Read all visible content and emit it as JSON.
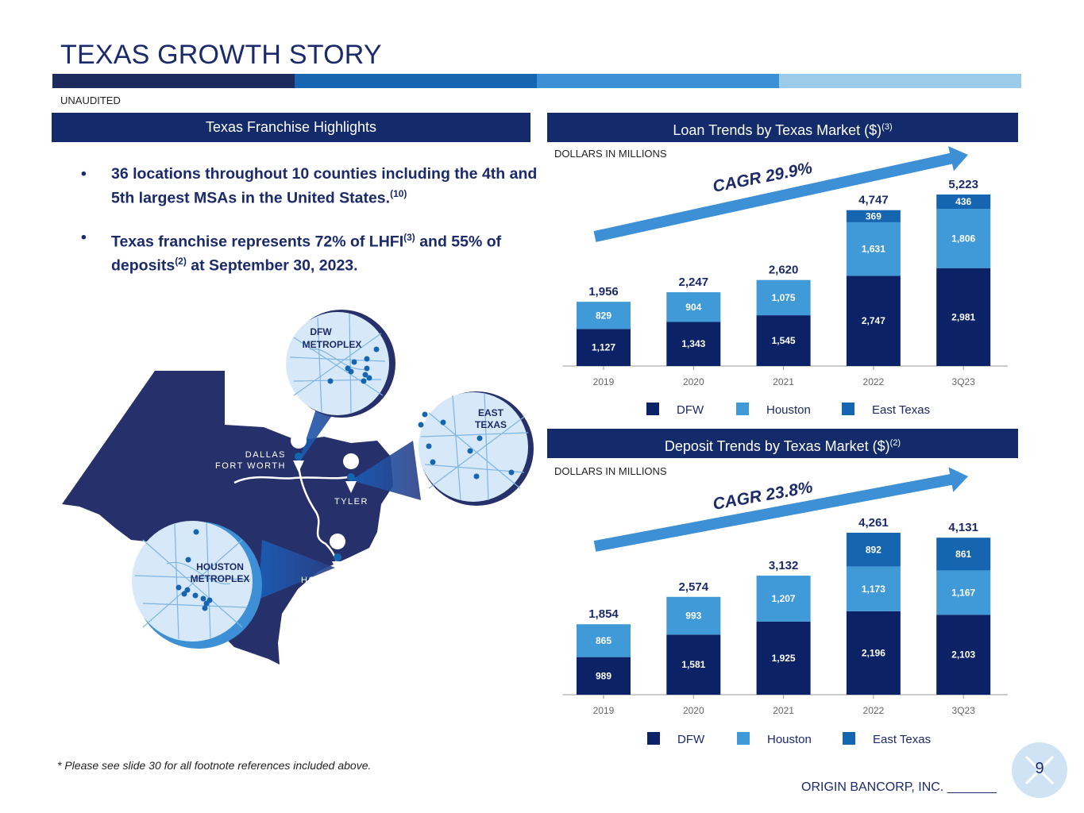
{
  "title": "TEXAS GROWTH STORY",
  "status": "UNAUDITED",
  "left_panel": {
    "header": "Texas Franchise Highlights",
    "bullets": [
      {
        "text_a": "36 locations throughout 10 counties including the 4th and 5th largest MSAs in the United States.",
        "sup_a": "(10)",
        "text_b": "",
        "sup_b": "",
        "text_c": ""
      },
      {
        "text_a": "Texas franchise represents 72% of LHFI",
        "sup_a": "(3)",
        "text_b": " and 55% of deposits",
        "sup_b": "(2)",
        "text_c": " at September 30, 2023."
      }
    ],
    "map": {
      "dfw_label": [
        "DFW",
        "METROPLEX"
      ],
      "east_label": [
        "EAST",
        "TEXAS"
      ],
      "houston_label": [
        "HOUSTON",
        "METROPLEX"
      ],
      "city_dallas": [
        "DALLAS",
        "FORT WORTH"
      ],
      "city_tyler": "TYLER",
      "city_houston": "HOUSTON"
    }
  },
  "colors": {
    "dfw": "#0b2266",
    "houston": "#419ad8",
    "east": "#1565b0",
    "header": "#132a6b",
    "arrow": "#3d8fd6"
  },
  "chart_data": [
    {
      "type": "bar",
      "stacked": true,
      "title": "Loan Trends by Texas Market ($)",
      "title_sup": "(3)",
      "units": "DOLLARS IN MILLIONS",
      "cagr": "CAGR 29.9%",
      "categories": [
        "2019",
        "2020",
        "2021",
        "2022",
        "3Q23"
      ],
      "series": [
        {
          "name": "DFW",
          "values": [
            1127,
            1343,
            1545,
            2747,
            2981
          ],
          "labels": [
            "1,127",
            "1,343",
            "1,545",
            "2,747",
            "2,981"
          ]
        },
        {
          "name": "Houston",
          "values": [
            829,
            904,
            1075,
            1631,
            1806
          ],
          "labels": [
            "829",
            "904",
            "1,075",
            "1,631",
            "1,806"
          ]
        },
        {
          "name": "East Texas",
          "values": [
            0,
            0,
            0,
            369,
            436
          ],
          "labels": [
            "",
            "",
            "",
            "369",
            "436"
          ]
        }
      ],
      "totals": [
        "1,956",
        "2,247",
        "2,620",
        "4,747",
        "5,223"
      ],
      "total_values": [
        1956,
        2247,
        2620,
        4747,
        5223
      ],
      "ylim": [
        0,
        5223
      ]
    },
    {
      "type": "bar",
      "stacked": true,
      "title": "Deposit Trends by Texas Market ($)",
      "title_sup": "(2)",
      "units": "DOLLARS IN MILLIONS",
      "cagr": "CAGR 23.8%",
      "categories": [
        "2019",
        "2020",
        "2021",
        "2022",
        "3Q23"
      ],
      "series": [
        {
          "name": "DFW",
          "values": [
            989,
            1581,
            1925,
            2196,
            2103
          ],
          "labels": [
            "989",
            "1,581",
            "1,925",
            "2,196",
            "2,103"
          ]
        },
        {
          "name": "Houston",
          "values": [
            865,
            993,
            1207,
            1173,
            1167
          ],
          "labels": [
            "865",
            "993",
            "1,207",
            "1,173",
            "1,167"
          ]
        },
        {
          "name": "East Texas",
          "values": [
            0,
            0,
            0,
            892,
            861
          ],
          "labels": [
            "",
            "",
            "",
            "892",
            "861"
          ]
        }
      ],
      "totals": [
        "1,854",
        "2,574",
        "3,132",
        "4,261",
        "4,131"
      ],
      "total_values": [
        1854,
        2574,
        3132,
        4261,
        4131
      ],
      "ylim": [
        0,
        4261
      ]
    }
  ],
  "footnote": "* Please see slide 30 for all footnote references included above.",
  "footer": {
    "company": "ORIGIN BANCORP, INC. _______",
    "page": "9"
  }
}
